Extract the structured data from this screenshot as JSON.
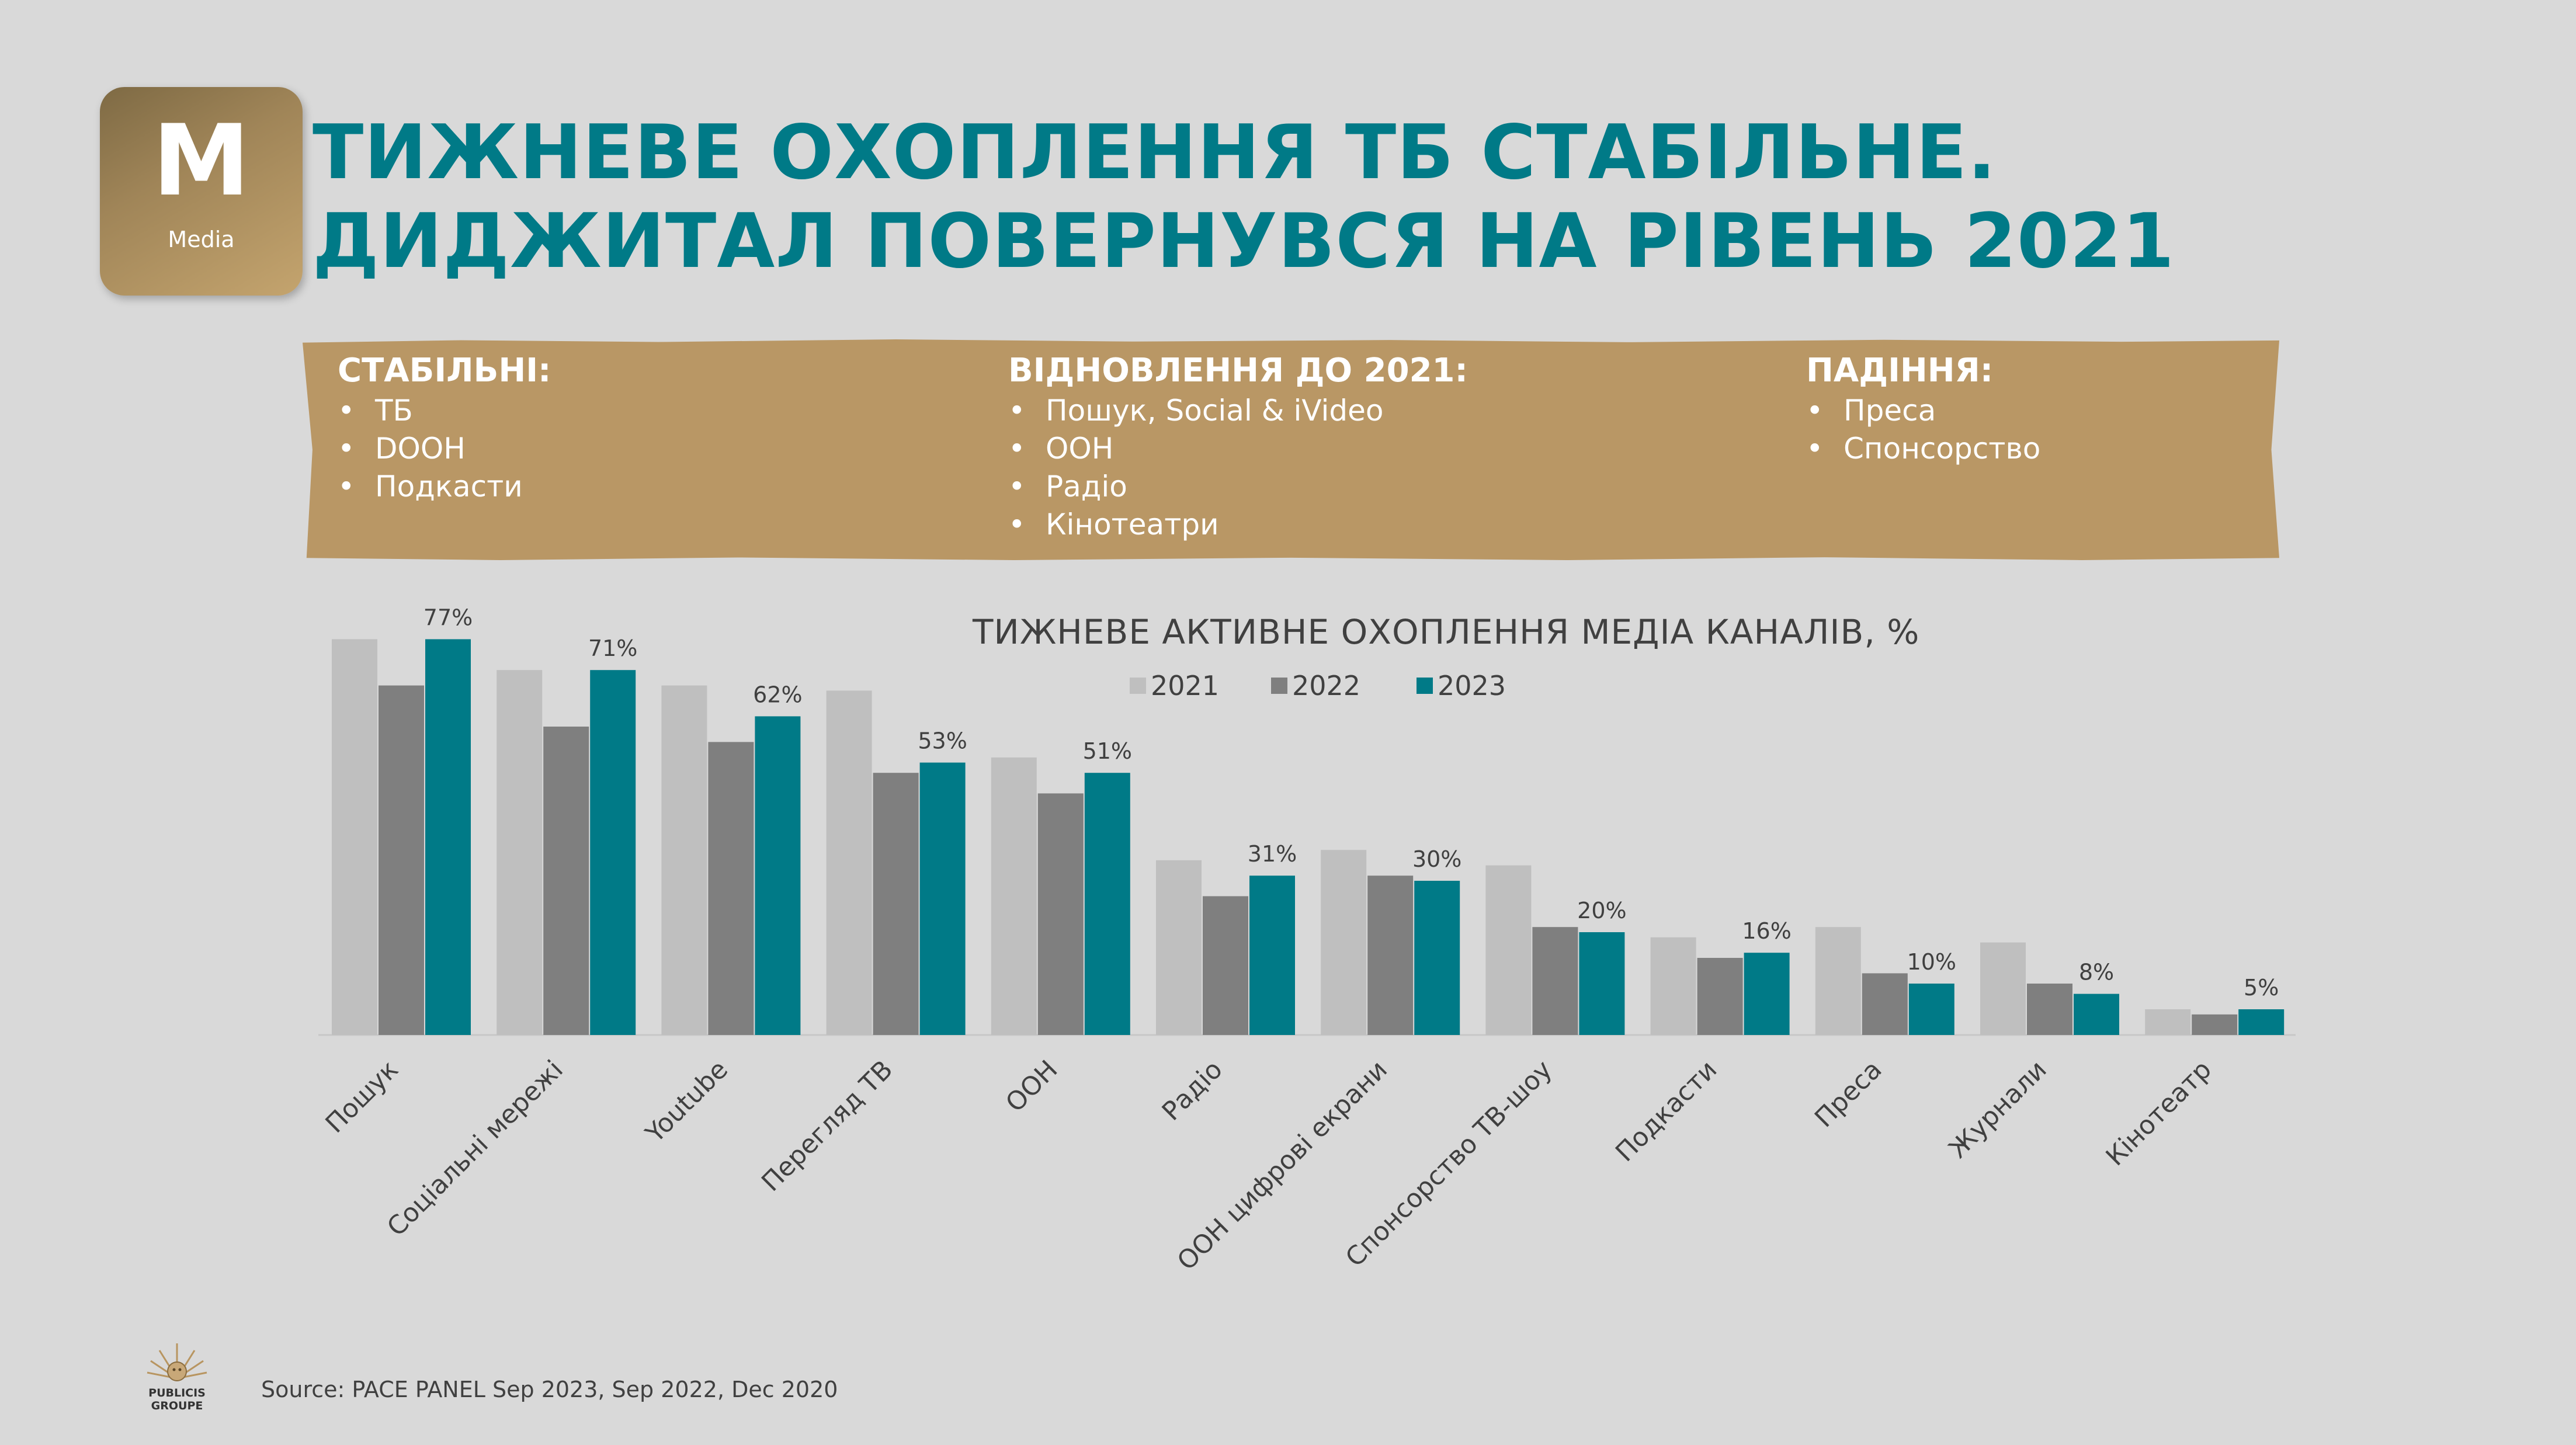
{
  "badge": {
    "letter": "M",
    "label": "Media"
  },
  "title": {
    "line1": "ТИЖНЕВЕ ОХОПЛЕННЯ ТБ СТАБІЛЬНЕ.",
    "line2": "ДИДЖИТАЛ ПОВЕРНУВСЯ НА РІВЕНЬ 2021"
  },
  "banner": {
    "columns": [
      {
        "heading": "СТАБІЛЬНІ:",
        "items": [
          "ТБ",
          "DOOH",
          "Подкасти"
        ]
      },
      {
        "heading": "ВІДНОВЛЕННЯ ДО 2021:",
        "items": [
          "Пошук, Social & iVideo",
          "OOH",
          "Радіо",
          "Кінотеатри"
        ]
      },
      {
        "heading": "ПАДІННЯ:",
        "items": [
          "Преса",
          "Спонсорство"
        ]
      }
    ]
  },
  "chart_data": {
    "type": "bar",
    "title": "ТИЖНЕВЕ АКТИВНЕ ОХОПЛЕННЯ МЕДІА КАНАЛІВ, %",
    "categories": [
      "Пошук",
      "Соціальні мережі",
      "Youtube",
      "Перегляд ТВ",
      "ООН",
      "Радіо",
      "ООН цифрові екрани",
      "Спонсорство ТВ-шоу",
      "Подкасти",
      "Преса",
      "Журнали",
      "Кінотеатр"
    ],
    "series": [
      {
        "name": "2021",
        "color": "#bfbfbf",
        "values": [
          77,
          71,
          68,
          67,
          54,
          34,
          36,
          33,
          19,
          21,
          18,
          5
        ]
      },
      {
        "name": "2022",
        "color": "#7f7f7f",
        "values": [
          68,
          60,
          57,
          51,
          47,
          27,
          31,
          21,
          15,
          12,
          10,
          4
        ]
      },
      {
        "name": "2023",
        "color": "#007a87",
        "values": [
          77,
          71,
          62,
          53,
          51,
          31,
          30,
          20,
          16,
          10,
          8,
          5
        ]
      }
    ],
    "data_labels": [
      "77%",
      "71%",
      "62%",
      "53%",
      "51%",
      "31%",
      "30%",
      "20%",
      "16%",
      "10%",
      "8%",
      "5%"
    ],
    "legend_position": "top-center",
    "grid": false
  },
  "source": "Source: PACE PANEL Sep 2023, Sep 2022, Dec 2020",
  "logo": {
    "line1": "PUBLICIS",
    "line2": "GROUPE"
  }
}
